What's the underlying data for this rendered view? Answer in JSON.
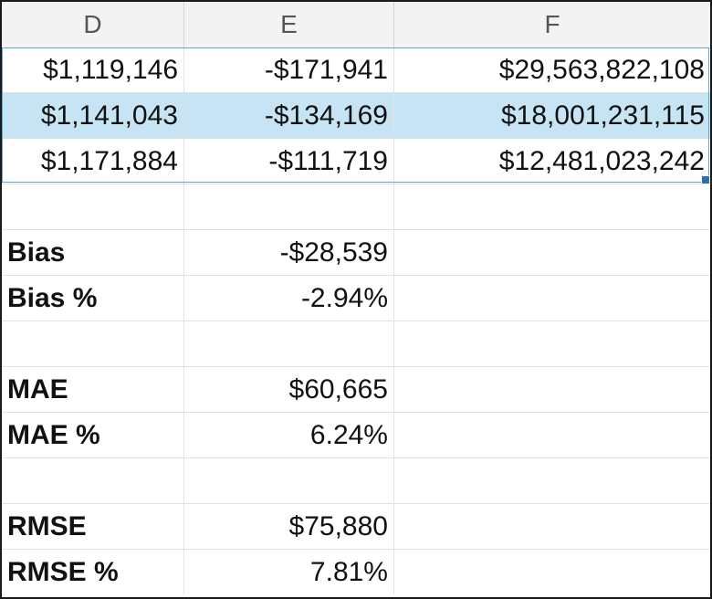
{
  "columns": [
    "D",
    "E",
    "F"
  ],
  "data_rows": [
    {
      "d": "$1,119,146",
      "e": "-$171,941",
      "f": "$29,563,822,108"
    },
    {
      "d": "$1,141,043",
      "e": "-$134,169",
      "f": "$18,001,231,115"
    },
    {
      "d": "$1,171,884",
      "e": "-$111,719",
      "f": "$12,481,023,242"
    }
  ],
  "metrics": [
    {
      "label": "Bias",
      "value": "-$28,539"
    },
    {
      "label": "Bias %",
      "value": "-2.94%"
    },
    {
      "label": "MAE",
      "value": "$60,665"
    },
    {
      "label": "MAE %",
      "value": "6.24%"
    },
    {
      "label": "RMSE",
      "value": "$75,880"
    },
    {
      "label": "RMSE %",
      "value": "7.81%"
    }
  ],
  "selection_color": "#c6e4f3",
  "selection_border_color": "#5aa9cf"
}
